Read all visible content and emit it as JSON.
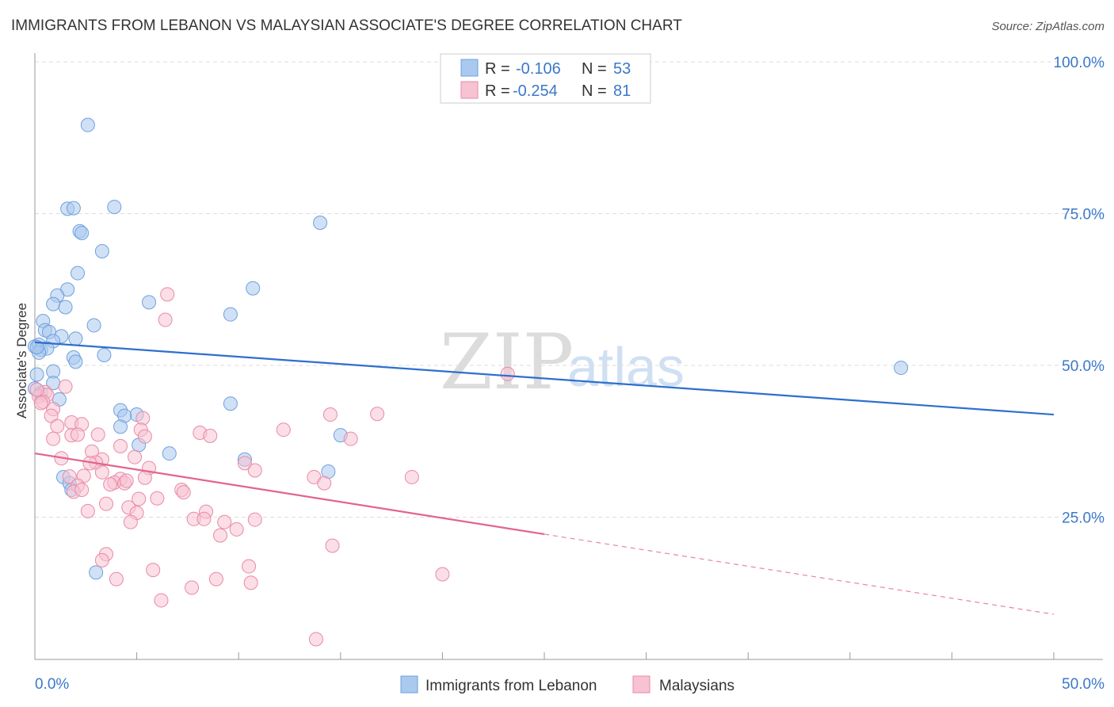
{
  "chart_data": {
    "type": "scatter",
    "title": "IMMIGRANTS FROM LEBANON VS MALAYSIAN ASSOCIATE'S DEGREE CORRELATION CHART",
    "source": "Source: ZipAtlas.com",
    "ylabel": "Associate's Degree",
    "xlim": [
      0,
      50
    ],
    "ylim": [
      0,
      104
    ],
    "y_ticks": [
      {
        "value": 25,
        "label": "25.0%"
      },
      {
        "value": 50,
        "label": "50.0%"
      },
      {
        "value": 75,
        "label": "75.0%"
      },
      {
        "value": 100,
        "label": "100.0%"
      }
    ],
    "x_tick_labels": {
      "min": "0.0%",
      "max": "50.0%"
    },
    "watermark": {
      "zip": "ZIP",
      "atlas": "atlas"
    },
    "legend": {
      "entries": [
        {
          "r_label": "R = ",
          "r_value": "-0.106",
          "n_label": "N = ",
          "n_value": "53"
        },
        {
          "r_label": "R = ",
          "r_value": "-0.254",
          "n_label": "N = ",
          "n_value": "81"
        }
      ]
    },
    "series": [
      {
        "name": "Immigrants from Lebanon",
        "color": "#a9c9ef",
        "stroke": "#6fa0dc",
        "trend_color": "#2e6fce",
        "trend": {
          "x0": 0,
          "y0": 53.8,
          "x1": 50,
          "y1": 41.9
        },
        "points": [
          [
            2.6,
            89.6
          ],
          [
            1.6,
            75.8
          ],
          [
            1.9,
            75.9
          ],
          [
            3.9,
            76.1
          ],
          [
            14.0,
            73.5
          ],
          [
            2.2,
            72.1
          ],
          [
            2.3,
            71.8
          ],
          [
            3.3,
            68.8
          ],
          [
            2.1,
            65.2
          ],
          [
            1.6,
            62.5
          ],
          [
            10.7,
            62.7
          ],
          [
            1.1,
            61.5
          ],
          [
            0.9,
            60.1
          ],
          [
            1.5,
            59.6
          ],
          [
            5.6,
            60.4
          ],
          [
            9.6,
            58.4
          ],
          [
            2.9,
            56.6
          ],
          [
            0.4,
            57.3
          ],
          [
            0.5,
            55.8
          ],
          [
            0.7,
            55.5
          ],
          [
            1.3,
            54.8
          ],
          [
            0.9,
            54.0
          ],
          [
            2.0,
            54.4
          ],
          [
            0.0,
            53.1
          ],
          [
            0.2,
            53.4
          ],
          [
            0.3,
            52.6
          ],
          [
            0.6,
            52.8
          ],
          [
            0.2,
            52.1
          ],
          [
            1.9,
            51.3
          ],
          [
            2.0,
            50.6
          ],
          [
            3.4,
            51.7
          ],
          [
            0.9,
            49.0
          ],
          [
            0.1,
            48.5
          ],
          [
            0.9,
            47.1
          ],
          [
            0.0,
            46.2
          ],
          [
            0.3,
            45.4
          ],
          [
            1.2,
            44.4
          ],
          [
            9.6,
            43.7
          ],
          [
            4.2,
            42.6
          ],
          [
            5.0,
            41.9
          ],
          [
            4.4,
            41.7
          ],
          [
            4.2,
            39.9
          ],
          [
            15.0,
            38.5
          ],
          [
            5.1,
            36.9
          ],
          [
            6.6,
            35.5
          ],
          [
            10.3,
            34.5
          ],
          [
            14.4,
            32.5
          ],
          [
            1.4,
            31.6
          ],
          [
            1.7,
            30.6
          ],
          [
            1.8,
            29.5
          ],
          [
            3.0,
            15.9
          ],
          [
            42.5,
            49.6
          ],
          [
            0.1,
            53.0
          ]
        ]
      },
      {
        "name": "Malaysians",
        "color": "#f7c2d2",
        "stroke": "#e98aa8",
        "trend_color": "#e2648e",
        "trend": {
          "x0": 0,
          "y0": 35.5,
          "x1": 25,
          "y1": 22.2
        },
        "trend_dashed": {
          "x0": 25,
          "y0": 22.2,
          "x1": 50,
          "y1": 9.0
        },
        "points": [
          [
            6.5,
            61.7
          ],
          [
            6.4,
            57.5
          ],
          [
            23.2,
            48.6
          ],
          [
            0.5,
            45.6
          ],
          [
            1.5,
            46.5
          ],
          [
            0.2,
            44.9
          ],
          [
            0.6,
            45.1
          ],
          [
            0.4,
            44.0
          ],
          [
            0.9,
            42.8
          ],
          [
            0.8,
            41.7
          ],
          [
            1.8,
            40.6
          ],
          [
            5.3,
            41.3
          ],
          [
            2.3,
            40.3
          ],
          [
            1.1,
            40.0
          ],
          [
            14.5,
            41.9
          ],
          [
            16.8,
            42.0
          ],
          [
            12.2,
            39.4
          ],
          [
            5.2,
            39.4
          ],
          [
            8.1,
            38.9
          ],
          [
            8.6,
            38.4
          ],
          [
            3.1,
            38.6
          ],
          [
            1.8,
            38.5
          ],
          [
            2.1,
            38.6
          ],
          [
            0.9,
            37.9
          ],
          [
            5.4,
            38.3
          ],
          [
            15.5,
            37.9
          ],
          [
            4.2,
            36.7
          ],
          [
            2.8,
            35.8
          ],
          [
            1.3,
            34.7
          ],
          [
            3.3,
            34.5
          ],
          [
            4.9,
            34.9
          ],
          [
            3.0,
            34.0
          ],
          [
            2.7,
            33.9
          ],
          [
            10.3,
            33.9
          ],
          [
            10.8,
            32.7
          ],
          [
            5.6,
            33.1
          ],
          [
            3.3,
            32.4
          ],
          [
            1.7,
            31.7
          ],
          [
            2.4,
            31.8
          ],
          [
            4.2,
            31.3
          ],
          [
            3.9,
            30.7
          ],
          [
            4.4,
            30.6
          ],
          [
            3.7,
            30.4
          ],
          [
            2.1,
            30.2
          ],
          [
            1.9,
            29.2
          ],
          [
            13.7,
            31.6
          ],
          [
            14.2,
            30.6
          ],
          [
            18.5,
            31.6
          ],
          [
            7.2,
            29.5
          ],
          [
            7.3,
            29.1
          ],
          [
            5.1,
            28.0
          ],
          [
            6.0,
            28.1
          ],
          [
            3.5,
            27.2
          ],
          [
            4.6,
            26.6
          ],
          [
            2.6,
            26.0
          ],
          [
            5.0,
            25.7
          ],
          [
            8.4,
            25.9
          ],
          [
            7.8,
            24.7
          ],
          [
            8.3,
            24.7
          ],
          [
            9.3,
            24.2
          ],
          [
            10.8,
            24.6
          ],
          [
            4.7,
            24.2
          ],
          [
            9.9,
            23.0
          ],
          [
            9.1,
            22.0
          ],
          [
            14.6,
            20.3
          ],
          [
            3.5,
            18.9
          ],
          [
            3.3,
            17.9
          ],
          [
            5.8,
            16.3
          ],
          [
            10.5,
            16.9
          ],
          [
            20.0,
            15.6
          ],
          [
            4.0,
            14.8
          ],
          [
            8.9,
            14.8
          ],
          [
            10.6,
            14.2
          ],
          [
            7.7,
            13.4
          ],
          [
            6.2,
            11.3
          ],
          [
            13.8,
            4.9
          ],
          [
            0.1,
            46.0
          ],
          [
            0.3,
            43.8
          ],
          [
            2.3,
            29.5
          ],
          [
            4.5,
            31.0
          ],
          [
            5.4,
            31.5
          ]
        ]
      }
    ]
  },
  "bottom_legend": {
    "items": [
      {
        "label": "Immigrants from Lebanon",
        "color": "#a9c9ef",
        "stroke": "#6fa0dc"
      },
      {
        "label": "Malaysians",
        "color": "#f7c2d2",
        "stroke": "#e98aa8"
      }
    ]
  }
}
